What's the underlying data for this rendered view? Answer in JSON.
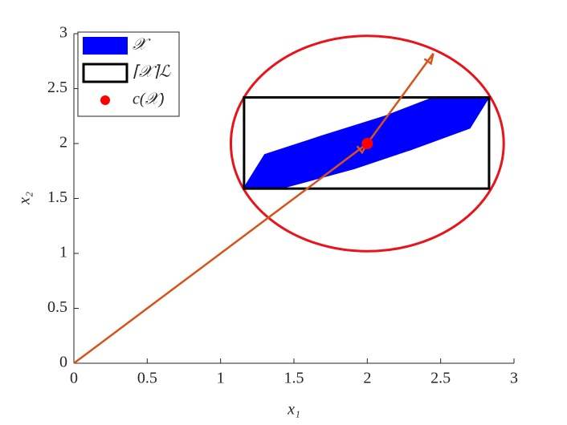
{
  "chart_data": {
    "type": "geometry",
    "xlabel": "x₁",
    "ylabel": "x₂",
    "xlim": [
      0,
      3
    ],
    "ylim": [
      0,
      3
    ],
    "xticks": [
      0,
      0.5,
      1,
      1.5,
      2,
      2.5,
      3
    ],
    "yticks": [
      0,
      0.5,
      1,
      1.5,
      2,
      2.5,
      3
    ],
    "series": [
      {
        "name": "𝒳",
        "kind": "polygon",
        "color": "#0000ff",
        "x": [
          1.16,
          1.3,
          1.69,
          2.12,
          2.45,
          2.83,
          2.7,
          2.29,
          1.91,
          1.44
        ],
        "y": [
          1.6,
          1.9,
          2.07,
          2.25,
          2.42,
          2.42,
          2.14,
          1.94,
          1.77,
          1.6
        ]
      },
      {
        "name": "⌈𝒳⌉ℒ",
        "kind": "box",
        "color": "#000000",
        "x": [
          1.16,
          2.83
        ],
        "y": [
          1.59,
          2.42
        ]
      },
      {
        "name": "c(𝒳)",
        "kind": "point",
        "color": "#ff0000",
        "x": [
          2
        ],
        "y": [
          2
        ]
      }
    ],
    "ellipse": {
      "center": [
        2,
        2
      ],
      "radii": [
        0.93,
        0.98
      ],
      "color": "#e8141a"
    },
    "arrows": {
      "color": "#d95319",
      "items": [
        {
          "from": [
            0,
            0
          ],
          "to": [
            2,
            2
          ]
        },
        {
          "from": [
            2,
            2
          ],
          "to": [
            2.45,
            2.82
          ]
        }
      ]
    },
    "legend": "upper left"
  }
}
